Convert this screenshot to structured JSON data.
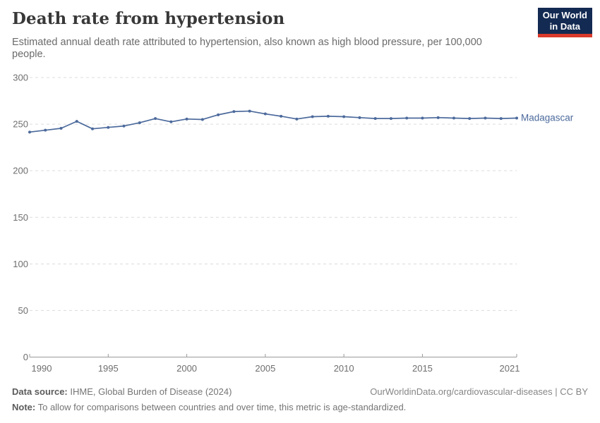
{
  "header": {
    "title": "Death rate from hypertension",
    "subtitle": "Estimated annual death rate attributed to hypertension, also known as high blood pressure, per 100,000 people.",
    "logo": {
      "line1": "Our World",
      "line2": "in Data"
    }
  },
  "chart_data": {
    "type": "line",
    "title": "Death rate from hypertension",
    "xlabel": "",
    "ylabel": "",
    "xlim": [
      1990,
      2021
    ],
    "ylim": [
      0,
      300
    ],
    "grid": "horizontal dashed",
    "legend_position": "end-of-line label",
    "xticks": [
      1990,
      1995,
      2000,
      2005,
      2010,
      2015,
      2021
    ],
    "yticks": [
      0,
      50,
      100,
      150,
      200,
      250,
      300
    ],
    "grid_color": "#dcdcdc",
    "axis_color": "#9a9a9a",
    "x": [
      1990,
      1991,
      1992,
      1993,
      1994,
      1995,
      1996,
      1997,
      1998,
      1999,
      2000,
      2001,
      2002,
      2003,
      2004,
      2005,
      2006,
      2007,
      2008,
      2009,
      2010,
      2011,
      2012,
      2013,
      2014,
      2015,
      2016,
      2017,
      2018,
      2019,
      2020,
      2021
    ],
    "series": [
      {
        "name": "Madagascar",
        "color": "#4c6a9c",
        "values": [
          241.5,
          243.5,
          245.5,
          253,
          245,
          246.5,
          248,
          251.5,
          256,
          252.5,
          255.5,
          255,
          260,
          263.5,
          264,
          261,
          258.5,
          255.5,
          258,
          258.5,
          258,
          257,
          256,
          256,
          256.5,
          256.5,
          257,
          256.5,
          256,
          256.5,
          256,
          256.5
        ]
      }
    ]
  },
  "footer": {
    "source_label": "Data source:",
    "source_text": " IHME, Global Burden of Disease (2024)",
    "note_label": "Note:",
    "note_text": " To allow for comparisons between countries and over time, this metric is age-standardized.",
    "link": "OurWorldinData.org/cardiovascular-diseases | CC BY"
  },
  "colors": {
    "series_blue": "#4c6a9c",
    "logo_navy": "#132a52",
    "logo_red": "#d93a2b",
    "title_text": "#383838",
    "subtitle_text": "#6b6b6b",
    "tick_text": "#6e6e6e"
  }
}
